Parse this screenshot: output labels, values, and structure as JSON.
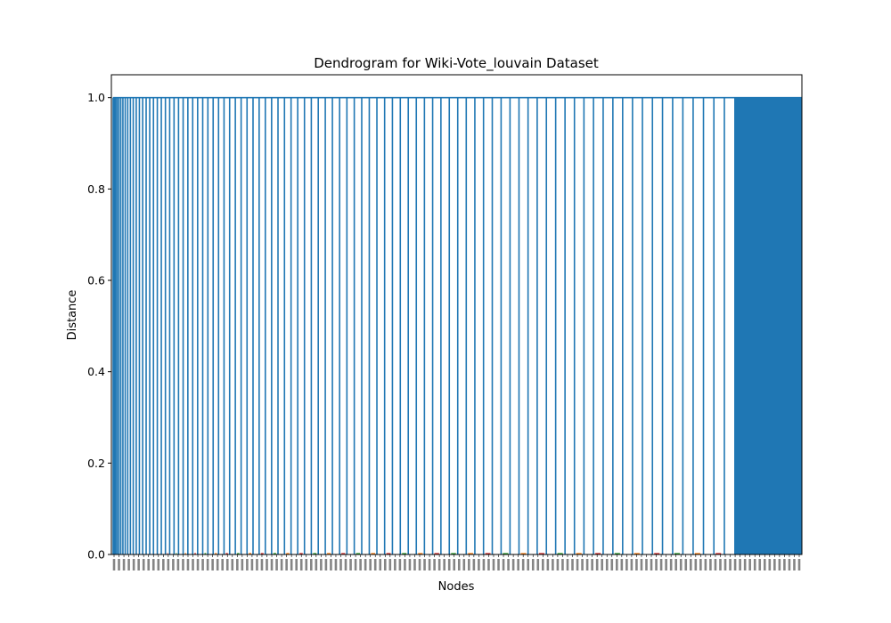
{
  "chart_data": {
    "type": "dendrogram",
    "title": "Dendrogram for Wiki-Vote_louvain Dataset",
    "xlabel": "Nodes",
    "ylabel": "Distance",
    "ylim": [
      0,
      1.05
    ],
    "yticks": [
      "0.0",
      "0.2",
      "0.4",
      "0.6",
      "0.8",
      "1.0"
    ],
    "ytick_values": [
      0.0,
      0.2,
      0.4,
      0.6,
      0.8,
      1.0
    ],
    "merge_height": 1.0,
    "leaf_count": 140,
    "visible_cluster_count": 95,
    "dense_block_start_fraction": 0.903,
    "line_color": "#1f77b4",
    "small_merge_colors": [
      "#ff7f0e",
      "#2ca02c",
      "#d62728"
    ],
    "grid": false
  }
}
